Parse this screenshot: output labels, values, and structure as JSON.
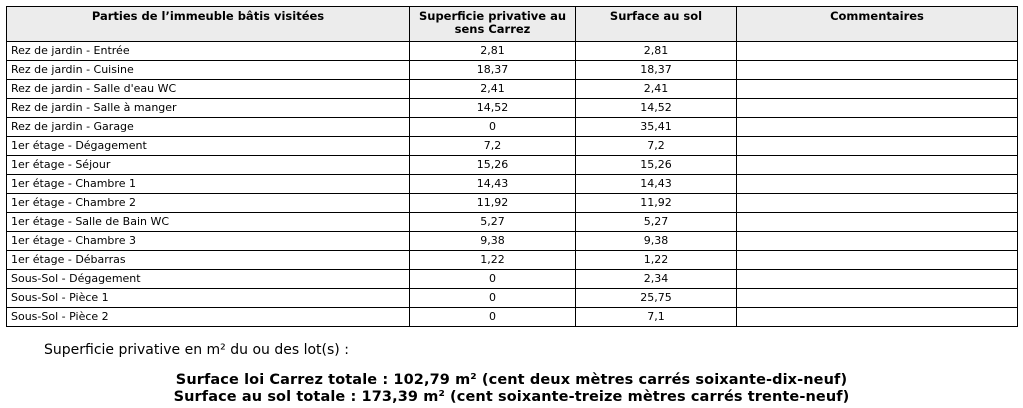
{
  "table": {
    "headers": {
      "part": "Parties de l’immeuble bâtis visitées",
      "carrez": "Superficie privative au sens Carrez",
      "sol": "Surface au sol",
      "comments": "Commentaires"
    },
    "rows": [
      {
        "part": "Rez de jardin - Entrée",
        "carrez": "2,81",
        "sol": "2,81",
        "comment": ""
      },
      {
        "part": "Rez de jardin - Cuisine",
        "carrez": "18,37",
        "sol": "18,37",
        "comment": ""
      },
      {
        "part": "Rez de jardin - Salle d'eau WC",
        "carrez": "2,41",
        "sol": "2,41",
        "comment": ""
      },
      {
        "part": "Rez de jardin - Salle à manger",
        "carrez": "14,52",
        "sol": "14,52",
        "comment": ""
      },
      {
        "part": "Rez de jardin - Garage",
        "carrez": "0",
        "sol": "35,41",
        "comment": ""
      },
      {
        "part": "1er étage - Dégagement",
        "carrez": "7,2",
        "sol": "7,2",
        "comment": ""
      },
      {
        "part": "1er étage - Séjour",
        "carrez": "15,26",
        "sol": "15,26",
        "comment": ""
      },
      {
        "part": "1er étage - Chambre 1",
        "carrez": "14,43",
        "sol": "14,43",
        "comment": ""
      },
      {
        "part": "1er étage - Chambre 2",
        "carrez": "11,92",
        "sol": "11,92",
        "comment": ""
      },
      {
        "part": "1er étage - Salle de Bain WC",
        "carrez": "5,27",
        "sol": "5,27",
        "comment": ""
      },
      {
        "part": "1er étage - Chambre 3",
        "carrez": "9,38",
        "sol": "9,38",
        "comment": ""
      },
      {
        "part": "1er étage - Débarras",
        "carrez": "1,22",
        "sol": "1,22",
        "comment": ""
      },
      {
        "part": "Sous-Sol - Dégagement",
        "carrez": "0",
        "sol": "2,34",
        "comment": ""
      },
      {
        "part": "Sous-Sol - Pièce 1",
        "carrez": "0",
        "sol": "25,75",
        "comment": ""
      },
      {
        "part": "Sous-Sol - Pièce 2",
        "carrez": "0",
        "sol": "7,1",
        "comment": ""
      }
    ]
  },
  "summary": {
    "label": "Superficie privative en m² du ou des lot(s) :",
    "carrez_total": "Surface loi Carrez totale : 102,79 m² (cent deux mètres carrés soixante-dix-neuf)",
    "sol_total": "Surface au sol totale : 173,39 m² (cent soixante-treize mètres carrés trente-neuf)"
  }
}
